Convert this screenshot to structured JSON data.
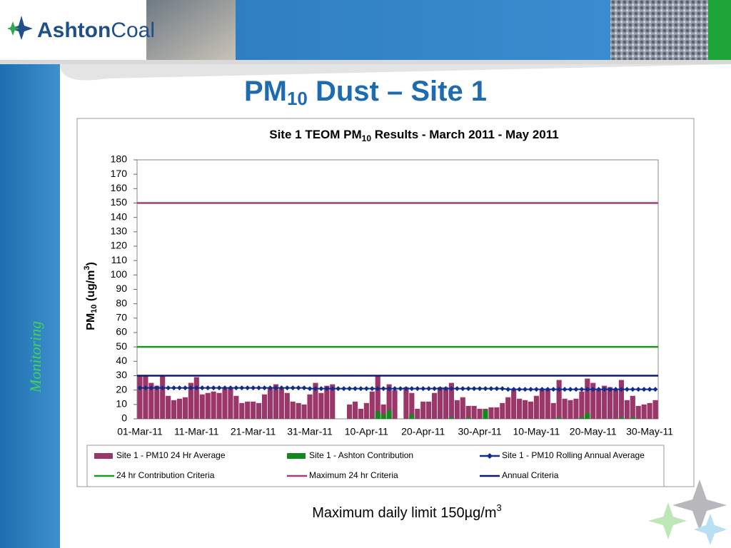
{
  "header": {
    "logo_part1": "Ashton",
    "logo_part2": "Coal"
  },
  "sidebar": {
    "label": "Monitoring"
  },
  "title": {
    "main": "PM",
    "sub": "10",
    "rest": " Dust – Site 1"
  },
  "chart_data": {
    "type": "bar",
    "title": {
      "main": "Site 1 TEOM PM",
      "sub": "10",
      "rest": " Results - March 2011 - May 2011"
    },
    "y_label": {
      "main": "PM",
      "sub": "10",
      "mid": " (ug/m",
      "sup": "3",
      "end": ")"
    },
    "categories": [
      "01-Mar-11",
      null,
      null,
      null,
      null,
      null,
      null,
      null,
      null,
      null,
      "11-Mar-11",
      null,
      null,
      null,
      null,
      null,
      null,
      null,
      null,
      null,
      "21-Mar-11",
      null,
      null,
      null,
      null,
      null,
      null,
      null,
      null,
      null,
      "31-Mar-11",
      null,
      null,
      null,
      null,
      null,
      null,
      null,
      null,
      null,
      "10-Apr-11",
      null,
      null,
      null,
      null,
      null,
      null,
      null,
      null,
      null,
      "20-Apr-11",
      null,
      null,
      null,
      null,
      null,
      null,
      null,
      null,
      null,
      "30-Apr-11",
      null,
      null,
      null,
      null,
      null,
      null,
      null,
      null,
      null,
      "10-May-11",
      null,
      null,
      null,
      null,
      null,
      null,
      null,
      null,
      null,
      "20-May-11",
      null,
      null,
      null,
      null,
      null,
      null,
      null,
      null,
      null,
      "30-May-11",
      null
    ],
    "ylim": [
      0,
      180
    ],
    "yticks": [
      0,
      10,
      20,
      30,
      40,
      50,
      60,
      70,
      80,
      90,
      100,
      110,
      120,
      130,
      140,
      150,
      160,
      170,
      180
    ],
    "series": [
      {
        "name": "Site 1 - PM10 24 Hr Average",
        "type": "bar",
        "color": "#9b3668",
        "values": [
          30,
          30,
          25,
          23,
          30,
          16,
          13,
          14,
          15,
          25,
          29,
          17,
          18,
          19,
          18,
          21,
          22,
          16,
          11,
          12,
          12,
          11,
          17,
          21,
          24,
          21,
          18,
          12,
          11,
          10,
          17,
          25,
          18,
          23,
          24,
          0,
          0,
          10,
          12,
          7,
          11,
          19,
          30,
          10,
          24,
          20,
          0,
          22,
          18,
          7,
          12,
          12,
          18,
          22,
          22,
          25,
          13,
          15,
          9,
          9,
          7,
          7,
          8,
          8,
          11,
          15,
          20,
          14,
          13,
          12,
          16,
          20,
          21,
          11,
          27,
          14,
          13,
          14,
          19,
          28,
          25,
          20,
          23,
          22,
          21,
          27,
          13,
          16,
          9,
          10,
          11,
          13
        ]
      },
      {
        "name": "Site 1 - Ashton Contribution",
        "type": "bar",
        "color": "#12891c",
        "values": [
          0,
          0,
          0,
          0,
          0,
          0,
          0,
          0,
          0,
          0,
          0,
          0,
          0,
          0,
          0,
          0,
          0,
          0,
          0,
          0,
          0,
          0,
          0,
          0,
          0,
          0,
          0,
          0,
          0,
          0,
          0,
          0,
          0,
          0,
          0,
          0,
          0,
          0,
          0,
          0,
          0,
          0,
          5,
          3,
          6,
          0,
          0,
          0,
          3,
          0,
          0,
          0,
          0,
          0,
          0,
          1,
          0,
          0,
          1,
          0,
          0,
          6,
          0,
          0,
          0,
          0,
          0,
          0,
          0,
          0,
          0,
          0,
          0,
          0,
          1,
          0,
          0,
          0,
          1,
          4,
          0,
          0,
          0,
          0,
          0,
          1,
          0,
          1,
          0,
          0,
          0,
          0
        ]
      },
      {
        "name": "Site 1 - PM10 Rolling Annual Average",
        "type": "line",
        "marker": "diamond",
        "color": "#102c8c",
        "values": [
          21.5,
          21.5,
          21.5,
          21.5,
          21.5,
          21.5,
          21.5,
          21.5,
          21.5,
          21.5,
          21.5,
          21.5,
          21.5,
          21.5,
          21.5,
          21.5,
          21.5,
          21.5,
          21.5,
          21.5,
          21.5,
          21.5,
          21.5,
          21.5,
          21.5,
          21.5,
          21.5,
          21.5,
          21.5,
          21.5,
          21,
          21,
          21,
          21,
          21,
          21,
          21,
          21,
          21,
          21,
          21,
          21,
          21,
          21,
          21,
          21,
          21,
          21,
          21,
          21,
          21,
          21,
          21,
          21,
          21,
          21,
          21,
          21,
          21,
          21,
          21,
          21,
          21,
          21,
          21,
          20.5,
          20.5,
          20.5,
          20.5,
          20.5,
          20.5,
          20.5,
          20.5,
          20.5,
          20.5,
          20.5,
          20.5,
          20.5,
          20.5,
          20.5,
          20.5,
          20.5,
          20.5,
          20.5,
          20.5,
          20.5,
          20.5,
          20.5,
          20.5,
          20.5,
          20.5,
          20.5
        ]
      }
    ],
    "reference_lines": [
      {
        "name": "24 hr Contribution Criteria",
        "color": "#1a9a1a",
        "value": 50
      },
      {
        "name": "Maximum 24 hr Criteria",
        "color": "#a3407c",
        "value": 150
      },
      {
        "name": "Annual Criteria",
        "color": "#0e1a70",
        "value": 30
      }
    ]
  },
  "caption": {
    "main": "Maximum daily limit 150µg/m",
    "sup": "3"
  }
}
